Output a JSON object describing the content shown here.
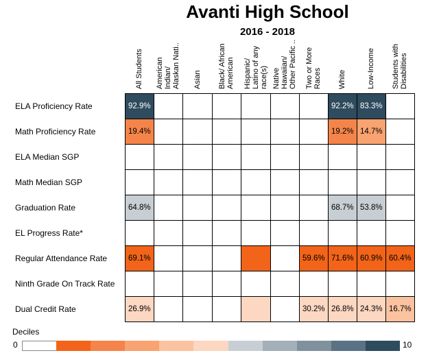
{
  "title": "Avanti High School",
  "subtitle": "2016 - 2018",
  "chart_data": {
    "type": "heatmap",
    "columns": [
      "All Students",
      "American\nIndian/\nAlaskan Nati..",
      "Asian",
      "Black/ African\nAmerican",
      "Hispanic/\nLatino of any\nrace(s)",
      "Native\nHawaiian/\nOther Pacific ..",
      "Two or More\nRaces",
      "White",
      "Low-Income",
      "Students with\nDisabilities"
    ],
    "rows": [
      "ELA Proficiency Rate",
      "Math Proficiency Rate",
      "ELA Median SGP",
      "Math Median SGP",
      "Graduation Rate",
      "EL Progress Rate*",
      "Regular Attendance Rate",
      "Ninth Grade On Track Rate",
      "Dual Credit Rate"
    ],
    "cells": [
      [
        "92.9%",
        "",
        "",
        "",
        "",
        "",
        "",
        "92.2%",
        "83.3%",
        ""
      ],
      [
        "19.4%",
        "",
        "",
        "",
        "",
        "",
        "",
        "19.2%",
        "14.7%",
        ""
      ],
      [
        "",
        "",
        "",
        "",
        "",
        "",
        "",
        "",
        "",
        ""
      ],
      [
        "",
        "",
        "",
        "",
        "",
        "",
        "",
        "",
        "",
        ""
      ],
      [
        "64.8%",
        "",
        "",
        "",
        "",
        "",
        "",
        "68.7%",
        "53.8%",
        ""
      ],
      [
        "",
        "",
        "",
        "",
        "",
        "",
        "",
        "",
        "",
        ""
      ],
      [
        "69.1%",
        "",
        "",
        "",
        "",
        "",
        "59.6%",
        "71.6%",
        "60.9%",
        "60.4%"
      ],
      [
        "",
        "",
        "",
        "",
        "",
        "",
        "",
        "",
        "",
        ""
      ],
      [
        "26.9%",
        "",
        "",
        "",
        "",
        "",
        "30.2%",
        "26.8%",
        "24.3%",
        "16.7%"
      ]
    ],
    "deciles": [
      [
        10,
        null,
        null,
        null,
        null,
        null,
        null,
        10,
        10,
        null
      ],
      [
        2,
        null,
        null,
        null,
        null,
        null,
        null,
        2,
        3,
        null
      ],
      [
        null,
        null,
        null,
        null,
        null,
        null,
        null,
        null,
        null,
        null
      ],
      [
        null,
        null,
        null,
        null,
        null,
        null,
        null,
        null,
        null,
        null
      ],
      [
        6,
        null,
        null,
        null,
        null,
        null,
        null,
        6,
        6,
        null
      ],
      [
        null,
        null,
        null,
        null,
        null,
        null,
        null,
        null,
        null,
        null
      ],
      [
        1,
        null,
        null,
        null,
        1,
        null,
        1,
        1,
        1,
        1
      ],
      [
        null,
        null,
        null,
        null,
        null,
        null,
        null,
        null,
        null,
        null
      ],
      [
        5,
        null,
        null,
        null,
        5,
        null,
        5,
        5,
        5,
        4
      ]
    ],
    "legend": {
      "title": "Deciles",
      "min_label": "0",
      "max_label": "10",
      "colors": [
        "#ffffff",
        "#f26419",
        "#f5844a",
        "#f8a370",
        "#fbc29f",
        "#fcd7c1",
        "#c8cfd4",
        "#a4b0b9",
        "#7f919d",
        "#5a7283",
        "#2f4b5e"
      ]
    }
  }
}
